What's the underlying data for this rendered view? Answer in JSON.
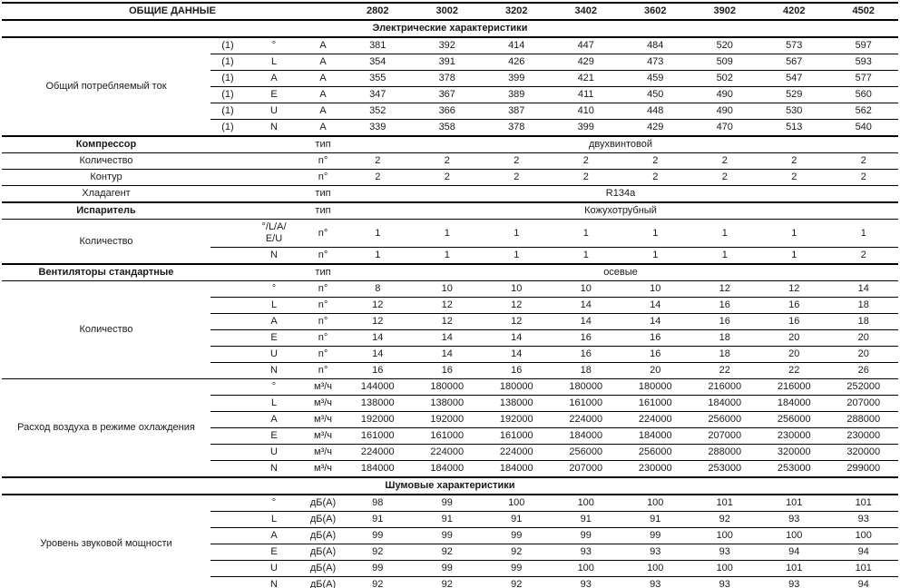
{
  "table": {
    "title": "ОБЩИЕ ДАННЫЕ",
    "models": [
      "2802",
      "3002",
      "3202",
      "3402",
      "3602",
      "3902",
      "4202",
      "4502"
    ],
    "rows": [
      {
        "type": "section",
        "label": "Электрические характеристики"
      },
      {
        "type": "group",
        "label": "Общий потребляемый ток",
        "subrows": [
          {
            "footnote": "(1)",
            "mode": [
              "°"
            ],
            "unit": "A",
            "values": [
              "381",
              "392",
              "414",
              "447",
              "484",
              "520",
              "573",
              "597"
            ]
          },
          {
            "footnote": "(1)",
            "mode": [
              "L"
            ],
            "unit": "A",
            "values": [
              "354",
              "391",
              "426",
              "429",
              "473",
              "509",
              "567",
              "593"
            ]
          },
          {
            "footnote": "(1)",
            "mode": [
              "A"
            ],
            "unit": "A",
            "values": [
              "355",
              "378",
              "399",
              "421",
              "459",
              "502",
              "547",
              "577"
            ]
          },
          {
            "footnote": "(1)",
            "mode": [
              "E"
            ],
            "unit": "A",
            "values": [
              "347",
              "367",
              "389",
              "411",
              "450",
              "490",
              "529",
              "560"
            ]
          },
          {
            "footnote": "(1)",
            "mode": [
              "U"
            ],
            "unit": "A",
            "values": [
              "352",
              "366",
              "387",
              "410",
              "448",
              "490",
              "530",
              "562"
            ]
          },
          {
            "footnote": "(1)",
            "mode": [
              "N"
            ],
            "unit": "A",
            "values": [
              "339",
              "358",
              "378",
              "399",
              "429",
              "470",
              "513",
              "540"
            ]
          }
        ]
      },
      {
        "type": "row",
        "label": "Компрессор",
        "bold": true,
        "unit": "тип",
        "span": "двухвинтовой"
      },
      {
        "type": "row",
        "label": "Количество",
        "unit": "n°",
        "values": [
          "2",
          "2",
          "2",
          "2",
          "2",
          "2",
          "2",
          "2"
        ]
      },
      {
        "type": "row",
        "label": "Контур",
        "unit": "n°",
        "values": [
          "2",
          "2",
          "2",
          "2",
          "2",
          "2",
          "2",
          "2"
        ]
      },
      {
        "type": "row",
        "label": "Хладагент",
        "unit": "тип",
        "span": "R134a"
      },
      {
        "type": "row",
        "label": "Испаритель",
        "bold": true,
        "unit": "тип",
        "span": "Кожухотрубный"
      },
      {
        "type": "group",
        "label": "Количество",
        "subrows": [
          {
            "mode": [
              "°/L/A/",
              "E/U"
            ],
            "unit": "n°",
            "values": [
              "1",
              "1",
              "1",
              "1",
              "1",
              "1",
              "1",
              "1"
            ]
          },
          {
            "mode": [
              "N"
            ],
            "unit": "n°",
            "values": [
              "1",
              "1",
              "1",
              "1",
              "1",
              "1",
              "1",
              "2"
            ]
          }
        ]
      },
      {
        "type": "row",
        "label": "Вентиляторы стандартные",
        "bold": true,
        "unit": "тип",
        "span": "осевые"
      },
      {
        "type": "group",
        "label": "Количество",
        "subrows": [
          {
            "mode": [
              "°"
            ],
            "unit": "n°",
            "values": [
              "8",
              "10",
              "10",
              "10",
              "10",
              "12",
              "12",
              "14"
            ]
          },
          {
            "mode": [
              "L"
            ],
            "unit": "n°",
            "values": [
              "12",
              "12",
              "12",
              "14",
              "14",
              "16",
              "16",
              "18"
            ]
          },
          {
            "mode": [
              "A"
            ],
            "unit": "n°",
            "values": [
              "12",
              "12",
              "12",
              "14",
              "14",
              "16",
              "16",
              "18"
            ]
          },
          {
            "mode": [
              "E"
            ],
            "unit": "n°",
            "values": [
              "14",
              "14",
              "14",
              "16",
              "16",
              "18",
              "20",
              "20"
            ]
          },
          {
            "mode": [
              "U"
            ],
            "unit": "n°",
            "values": [
              "14",
              "14",
              "14",
              "16",
              "16",
              "18",
              "20",
              "20"
            ]
          },
          {
            "mode": [
              "N"
            ],
            "unit": "n°",
            "values": [
              "16",
              "16",
              "16",
              "18",
              "20",
              "22",
              "22",
              "26"
            ]
          }
        ]
      },
      {
        "type": "group",
        "label": "Расход воздуха в режиме охлаждения",
        "subrows": [
          {
            "mode": [
              "°"
            ],
            "unit": "м³/ч",
            "values": [
              "144000",
              "180000",
              "180000",
              "180000",
              "180000",
              "216000",
              "216000",
              "252000"
            ]
          },
          {
            "mode": [
              "L"
            ],
            "unit": "м³/ч",
            "values": [
              "138000",
              "138000",
              "138000",
              "161000",
              "161000",
              "184000",
              "184000",
              "207000"
            ]
          },
          {
            "mode": [
              "A"
            ],
            "unit": "м³/ч",
            "values": [
              "192000",
              "192000",
              "192000",
              "224000",
              "224000",
              "256000",
              "256000",
              "288000"
            ]
          },
          {
            "mode": [
              "E"
            ],
            "unit": "м³/ч",
            "values": [
              "161000",
              "161000",
              "161000",
              "184000",
              "184000",
              "207000",
              "230000",
              "230000"
            ]
          },
          {
            "mode": [
              "U"
            ],
            "unit": "м³/ч",
            "values": [
              "224000",
              "224000",
              "224000",
              "256000",
              "256000",
              "288000",
              "320000",
              "320000"
            ]
          },
          {
            "mode": [
              "N"
            ],
            "unit": "м³/ч",
            "values": [
              "184000",
              "184000",
              "184000",
              "207000",
              "230000",
              "253000",
              "253000",
              "299000"
            ]
          }
        ]
      },
      {
        "type": "section",
        "label": "Шумовые характеристики"
      },
      {
        "type": "group",
        "label": "Уровень звуковой мощности",
        "subrows": [
          {
            "mode": [
              "°"
            ],
            "unit": "дБ(А)",
            "values": [
              "98",
              "99",
              "100",
              "100",
              "100",
              "101",
              "101",
              "101"
            ]
          },
          {
            "mode": [
              "L"
            ],
            "unit": "дБ(А)",
            "values": [
              "91",
              "91",
              "91",
              "91",
              "91",
              "92",
              "93",
              "93"
            ]
          },
          {
            "mode": [
              "A"
            ],
            "unit": "дБ(А)",
            "values": [
              "99",
              "99",
              "99",
              "99",
              "99",
              "100",
              "100",
              "100"
            ]
          },
          {
            "mode": [
              "E"
            ],
            "unit": "дБ(А)",
            "values": [
              "92",
              "92",
              "92",
              "93",
              "93",
              "93",
              "94",
              "94"
            ]
          },
          {
            "mode": [
              "U"
            ],
            "unit": "дБ(А)",
            "values": [
              "99",
              "99",
              "99",
              "100",
              "100",
              "100",
              "101",
              "101"
            ]
          },
          {
            "mode": [
              "N"
            ],
            "unit": "дБ(А)",
            "values": [
              "92",
              "92",
              "92",
              "93",
              "93",
              "93",
              "93",
              "94"
            ]
          }
        ]
      }
    ]
  }
}
